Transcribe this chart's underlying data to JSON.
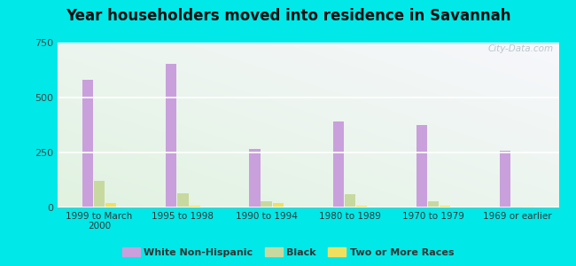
{
  "title": "Year householders moved into residence in Savannah",
  "categories": [
    "1999 to March\n2000",
    "1995 to 1998",
    "1990 to 1994",
    "1980 to 1989",
    "1970 to 1979",
    "1969 or earlier"
  ],
  "white_non_hispanic": [
    580,
    655,
    268,
    390,
    375,
    260
  ],
  "black": [
    120,
    65,
    30,
    60,
    30,
    5
  ],
  "two_or_more_races": [
    20,
    10,
    22,
    8,
    10,
    3
  ],
  "bar_colors": {
    "white_non_hispanic": "#c9a0dc",
    "black": "#c8d9a0",
    "two_or_more_races": "#f0e060"
  },
  "ylim": [
    0,
    750
  ],
  "yticks": [
    0,
    250,
    500,
    750
  ],
  "outer_background": "#00e8e8",
  "watermark": "City-Data.com",
  "legend_labels": [
    "White Non-Hispanic",
    "Black",
    "Two or More Races"
  ]
}
